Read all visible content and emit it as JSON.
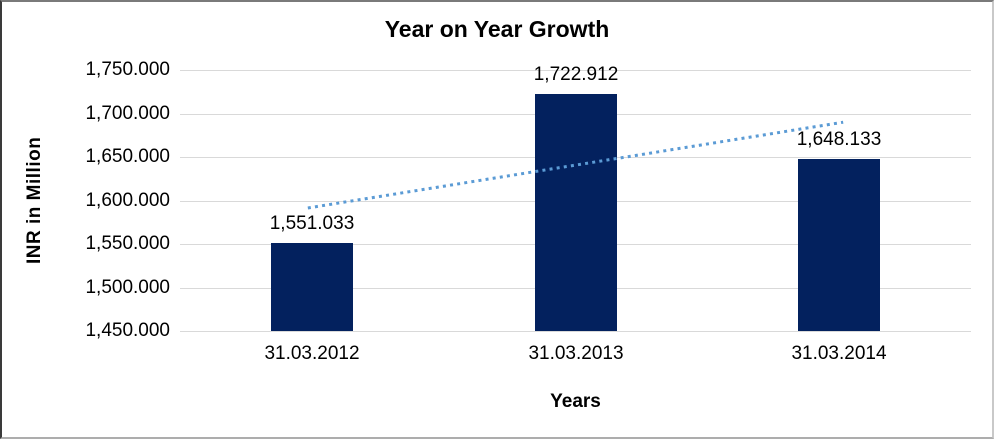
{
  "chart_data": {
    "type": "bar",
    "title": "Year on Year Growth",
    "xlabel": "Years",
    "ylabel": "INR in Million",
    "categories": [
      "31.03.2012",
      "31.03.2013",
      "31.03.2014"
    ],
    "values": [
      1551.033,
      1722.912,
      1648.133
    ],
    "data_labels": [
      "1,551.033",
      "1,722.912",
      "1,648.133"
    ],
    "ylim": [
      1450,
      1750
    ],
    "ytick_labels": [
      "1,450.000",
      "1,500.000",
      "1,550.000",
      "1,600.000",
      "1,650.000",
      "1,700.000",
      "1,750.000"
    ],
    "grid": true,
    "legend_position": "none",
    "bar_color": "#03215E",
    "gridline_color": "#D9D9D9",
    "trendline": {
      "type": "linear",
      "style": "dotted",
      "color": "#5B9BD5"
    }
  }
}
